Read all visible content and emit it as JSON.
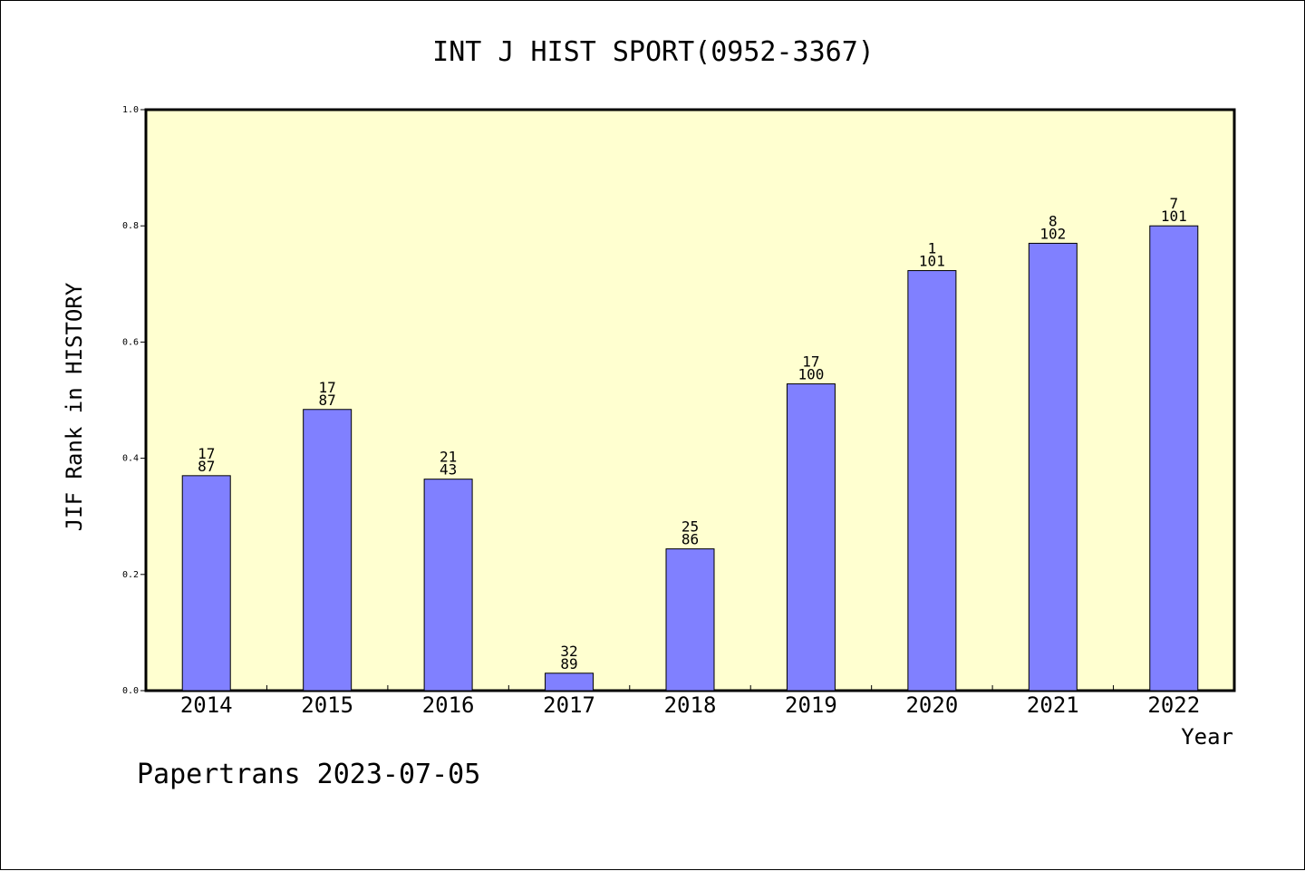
{
  "chart_data": {
    "type": "bar",
    "title": "INT J HIST SPORT(0952-3367)",
    "xlabel": "Year",
    "ylabel": "JIF Rank in HISTORY",
    "ylim": [
      0,
      1.0
    ],
    "yticks": [
      "0.0",
      "0.2",
      "0.4",
      "0.6",
      "0.8",
      "1.0"
    ],
    "categories": [
      "2014",
      "2015",
      "2016",
      "2017",
      "2018",
      "2019",
      "2020",
      "2021",
      "2022"
    ],
    "values": [
      0.37,
      0.484,
      0.364,
      0.03,
      0.244,
      0.528,
      0.723,
      0.77,
      0.8
    ],
    "rank_labels": [
      "17",
      "17",
      "21",
      "32",
      "25",
      "17",
      "1",
      "8",
      "7"
    ],
    "total_labels": [
      "87",
      "87",
      "43",
      "89",
      "86",
      "100",
      "101",
      "102",
      "101"
    ],
    "grid": false,
    "colors": {
      "plot_background": "#ffffd0",
      "bar_fill": "#8080ff",
      "bar_stroke": "#000000",
      "axis": "#000000"
    }
  },
  "footer": "Papertrans 2023-07-05"
}
